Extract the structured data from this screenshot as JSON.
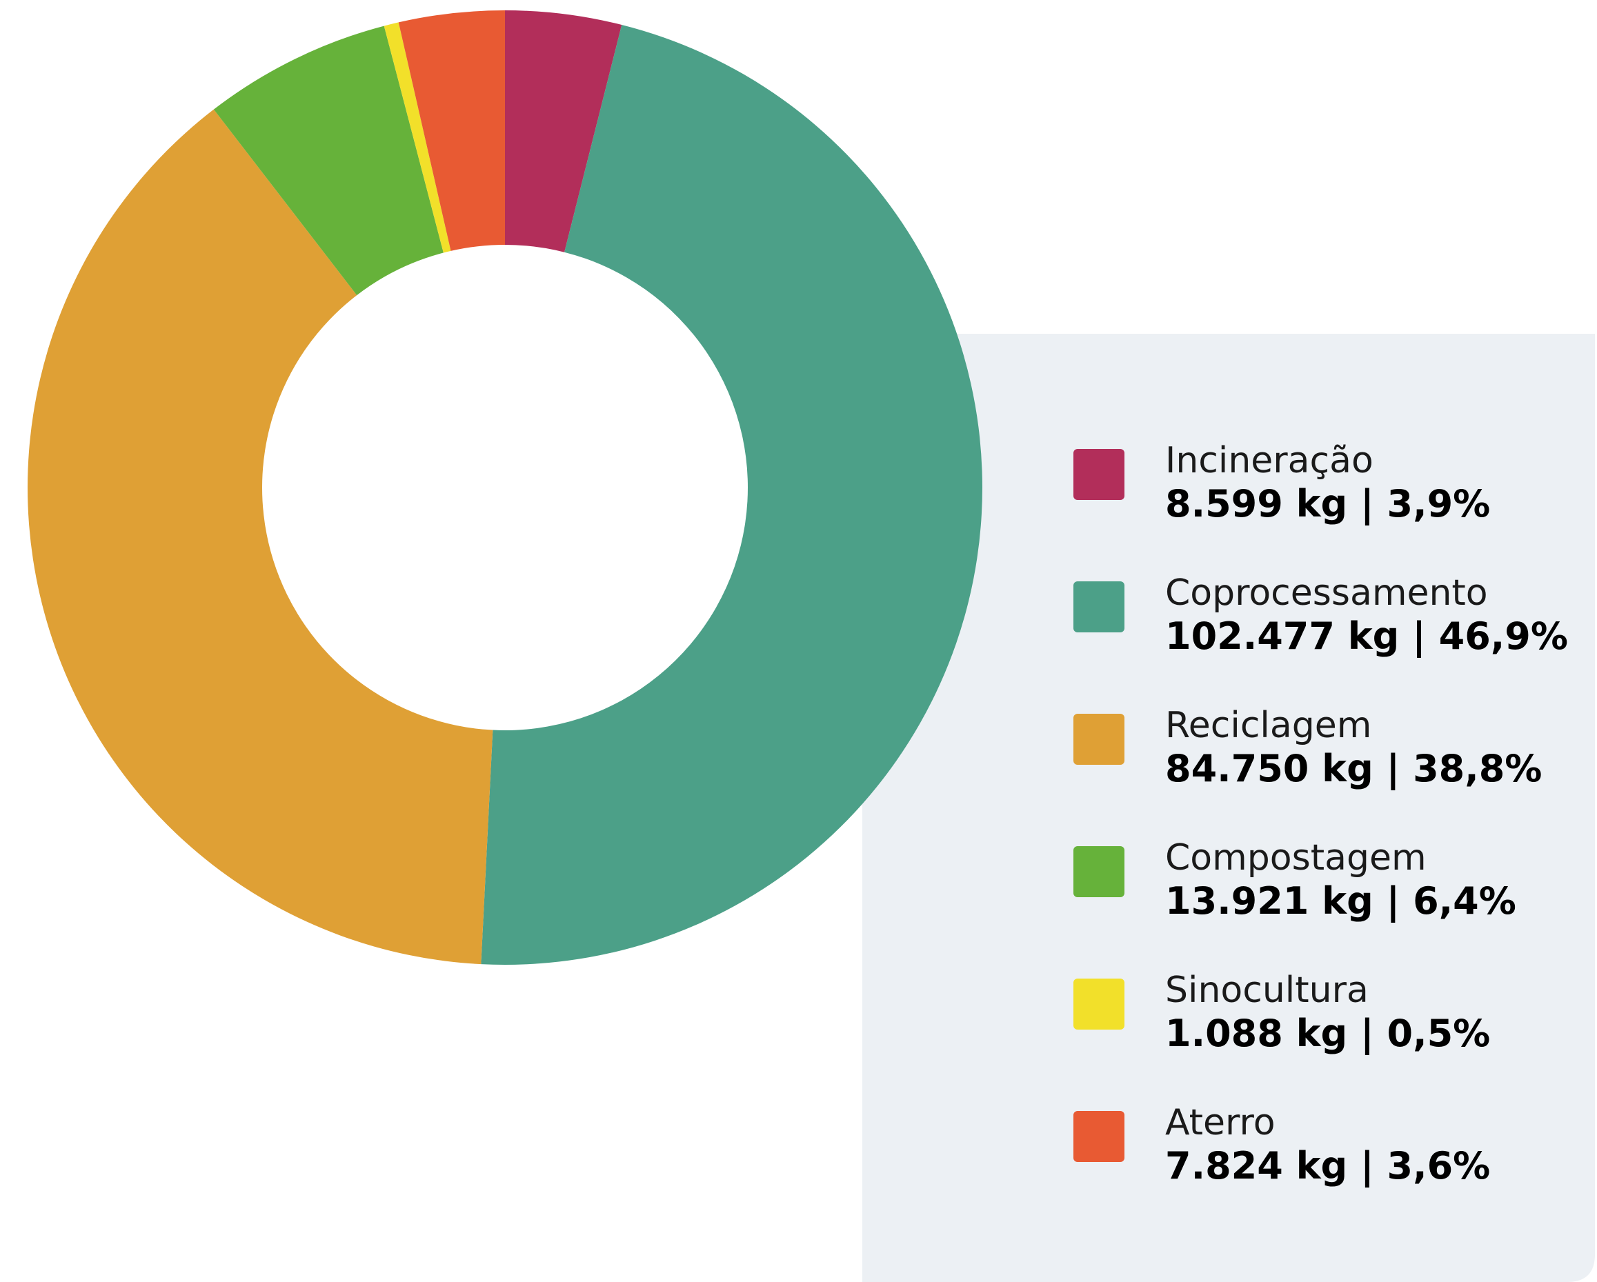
{
  "chart_data": {
    "type": "donut",
    "categories": [
      "Incineração",
      "Coprocessamento",
      "Reciclagem",
      "Compostagem",
      "Sinocultura",
      "Aterro"
    ],
    "values": [
      8599,
      102477,
      84750,
      13921,
      1088,
      7824
    ],
    "value_labels": [
      "8.599 kg | 3,9%",
      "102.477 kg | 46,9%",
      "84.750 kg | 38,8%",
      "13.921 kg | 6,4%",
      "1.088 kg | 0,5%",
      "7.824 kg | 3,6%"
    ],
    "colors": [
      "#b22e5a",
      "#4ca088",
      "#dfa035",
      "#66b23a",
      "#f2e02a",
      "#e85a33"
    ],
    "legend": "right"
  }
}
